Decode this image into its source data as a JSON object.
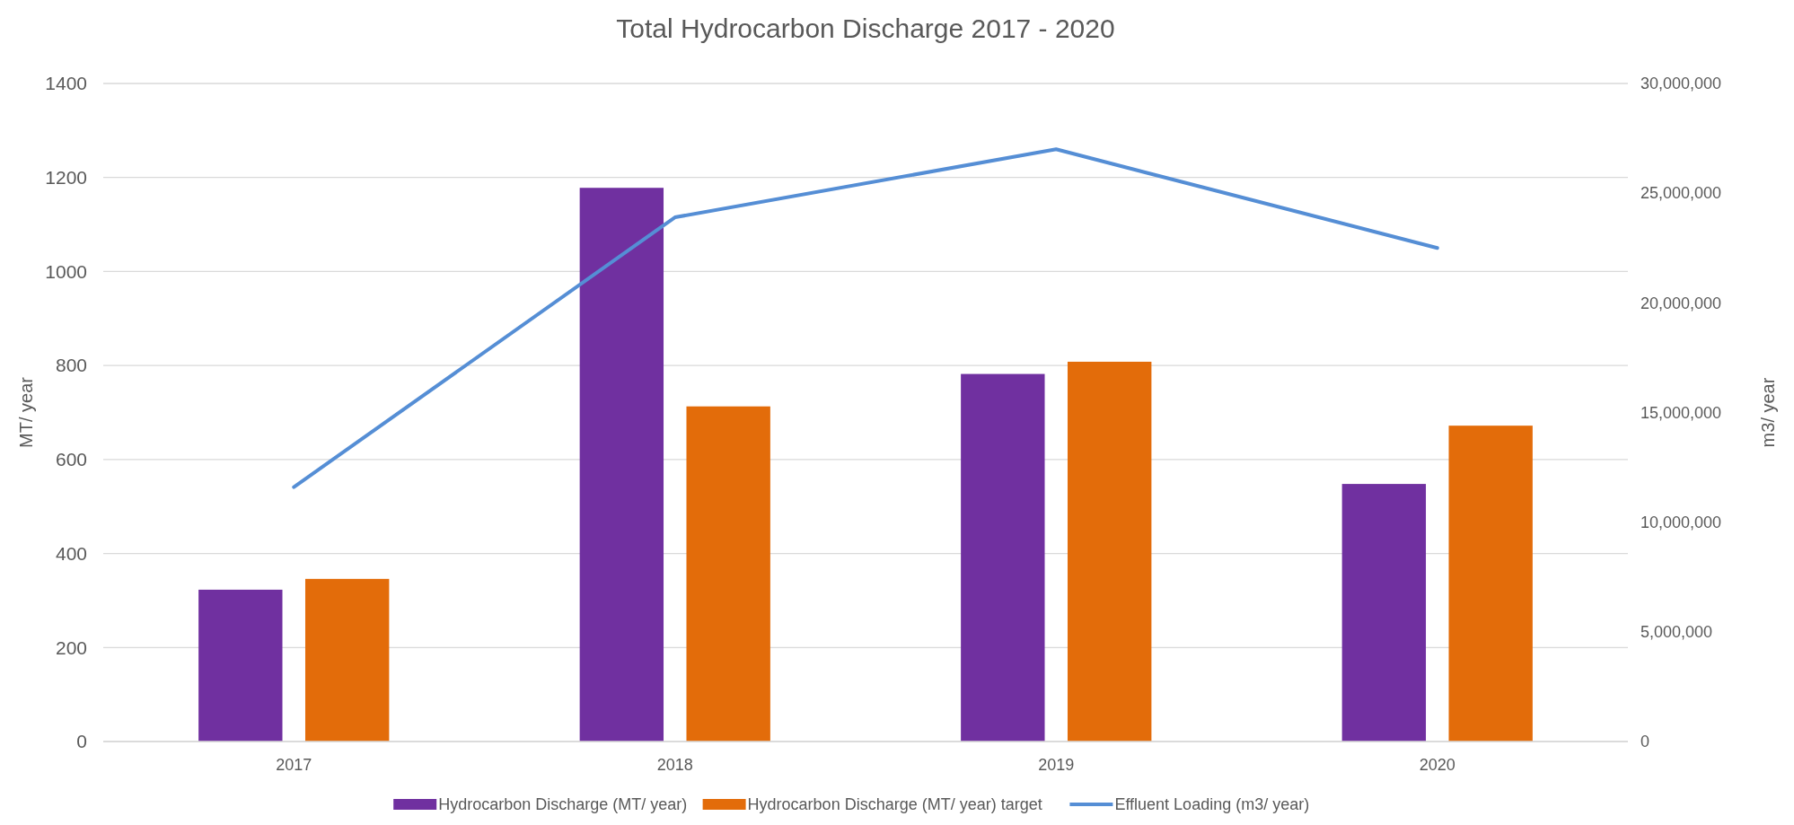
{
  "chart_data": {
    "type": "bar",
    "title": "Total Hydrocarbon Discharge 2017 - 2020",
    "ylabel": "MT/ year",
    "y2label": "m3/ year",
    "categories": [
      "2017",
      "2018",
      "2019",
      "2020"
    ],
    "series": [
      {
        "name": "Hydrocarbon Discharge (MT/ year)",
        "color": "#7030a0",
        "values": [
          323,
          1178,
          782,
          548
        ]
      },
      {
        "name": "Hydrocarbon Discharge (MT/ year) target",
        "color": "#e36c0a",
        "values": [
          346,
          713,
          808,
          672
        ]
      },
      {
        "name": "Effluent Loading (m3/ year)",
        "type": "line",
        "axis": "y2",
        "color": "#558ed5",
        "values": [
          11600000,
          23900000,
          27000000,
          22500000
        ]
      }
    ],
    "ylim": [
      0,
      1400
    ],
    "yticks": [
      0,
      200,
      400,
      600,
      800,
      1000,
      1200,
      1400
    ],
    "y2lim": [
      0,
      30000000
    ],
    "y2ticks": [
      {
        "value": 0,
        "label": "0"
      },
      {
        "value": 5000000,
        "label": "5,000,000"
      },
      {
        "value": 10000000,
        "label": "10,000,000"
      },
      {
        "value": 15000000,
        "label": "15,000,000"
      },
      {
        "value": 20000000,
        "label": "20,000,000"
      },
      {
        "value": 25000000,
        "label": "25,000,000"
      },
      {
        "value": 30000000,
        "label": "30,000,000"
      }
    ],
    "grid": "y",
    "legend": "bottom",
    "line_style": "solid",
    "marker": "none"
  }
}
